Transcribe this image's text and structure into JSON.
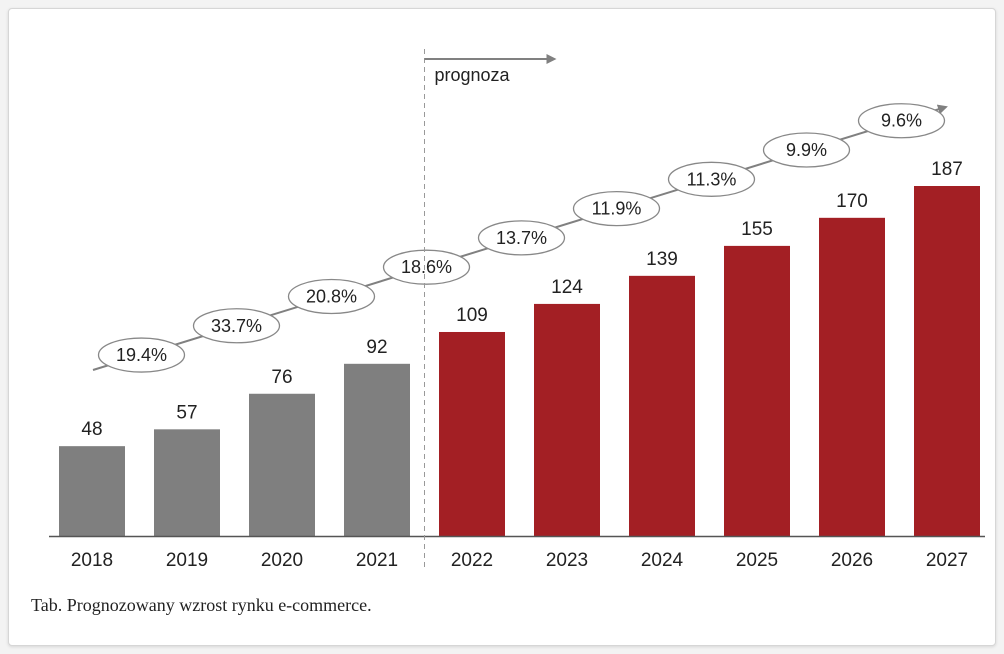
{
  "chart_data": {
    "type": "bar",
    "categories": [
      "2018",
      "2019",
      "2020",
      "2021",
      "2022",
      "2023",
      "2024",
      "2025",
      "2026",
      "2027"
    ],
    "values": [
      48,
      57,
      76,
      92,
      109,
      124,
      139,
      155,
      170,
      187
    ],
    "growth_labels": [
      "19.4%",
      "33.7%",
      "20.8%",
      "18.6%",
      "13.7%",
      "11.9%",
      "11.3%",
      "9.9%",
      "9.6%"
    ],
    "forecast_label": "prognoza",
    "forecast_start_index": 4,
    "ylim": [
      0,
      187
    ],
    "grid": false,
    "colors": {
      "actual": "#7f7f7f",
      "forecast": "#a31f24",
      "trend": "#808080"
    }
  },
  "caption": "Tab. Prognozowany wzrost rynku e-commerce."
}
